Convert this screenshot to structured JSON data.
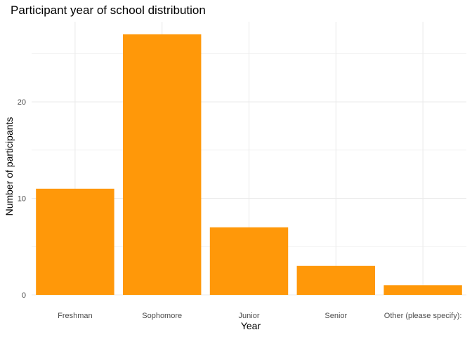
{
  "chart_data": {
    "type": "bar",
    "title": "Participant year of school distribution",
    "xlabel": "Year",
    "ylabel": "Number of participants",
    "categories": [
      "Freshman",
      "Sophomore",
      "Junior",
      "Senior",
      "Other (please specify):"
    ],
    "values": [
      11,
      27,
      7,
      3,
      1
    ],
    "ylim": [
      0,
      28.3
    ],
    "y_ticks": [
      0,
      10,
      20
    ],
    "y_ticks_labels": [
      "0",
      "10",
      "20"
    ],
    "grid": true,
    "legend": "none",
    "bar_color": "#FF9809",
    "grid_color": "#EBEBEB"
  }
}
